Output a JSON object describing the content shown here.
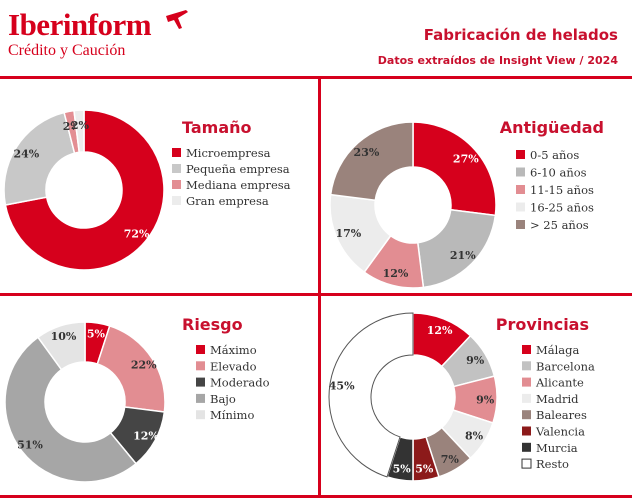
{
  "brand": {
    "name": "Iberinform",
    "tagline": "Crédito y Caución",
    "color": "#d6001c"
  },
  "report": {
    "title": "Fabricación de helados",
    "subtitle": "Datos extraídos de Insight View / 2024"
  },
  "chart_data": [
    {
      "type": "pie",
      "donut": true,
      "title": "Tamaño",
      "legend": "right",
      "series": [
        {
          "name": "Microempresa",
          "value": 72,
          "label": "72%",
          "color": "#d6001c"
        },
        {
          "name": "Pequeña empresa",
          "value": 24,
          "label": "24%",
          "color": "#c8c8c8"
        },
        {
          "name": "Mediana empresa",
          "value": 2,
          "label": "2%",
          "color": "#e38e93"
        },
        {
          "name": "Gran empresa",
          "value": 2,
          "label": "2%",
          "color": "#ececec"
        }
      ]
    },
    {
      "type": "pie",
      "donut": true,
      "title": "Antigüedad",
      "legend": "right",
      "series": [
        {
          "name": "0-5 años",
          "value": 27,
          "label": "27%",
          "color": "#d6001c"
        },
        {
          "name": "6-10 años",
          "value": 21,
          "label": "21%",
          "color": "#b9b9b9"
        },
        {
          "name": "11-15 años",
          "value": 12,
          "label": "12%",
          "color": "#e28d92"
        },
        {
          "name": "16-25 años",
          "value": 17,
          "label": "17%",
          "color": "#ececec"
        },
        {
          "name": "> 25 años",
          "value": 23,
          "label": "23%",
          "color": "#9a837c"
        }
      ]
    },
    {
      "type": "pie",
      "donut": true,
      "title": "Riesgo",
      "legend": "right",
      "series": [
        {
          "name": "Máximo",
          "value": 5,
          "label": "5%",
          "color": "#d6001c"
        },
        {
          "name": "Elevado",
          "value": 22,
          "label": "22%",
          "color": "#e28d92"
        },
        {
          "name": "Moderado",
          "value": 12,
          "label": "12%",
          "color": "#454545"
        },
        {
          "name": "Bajo",
          "value": 51,
          "label": "51%",
          "color": "#a6a6a6"
        },
        {
          "name": "Mínimo",
          "value": 10,
          "label": "10%",
          "color": "#e4e4e4"
        }
      ]
    },
    {
      "type": "pie",
      "donut": true,
      "title": "Provincias",
      "legend": "right",
      "series": [
        {
          "name": "Málaga",
          "value": 12,
          "label": "12%",
          "color": "#d6001c"
        },
        {
          "name": "Barcelona",
          "value": 9,
          "label": "9%",
          "color": "#c2c2c2"
        },
        {
          "name": "Alicante",
          "value": 9,
          "label": "9%",
          "color": "#e28d92"
        },
        {
          "name": "Madrid",
          "value": 8,
          "label": "8%",
          "color": "#ececec"
        },
        {
          "name": "Baleares",
          "value": 7,
          "label": "7%",
          "color": "#9a837c"
        },
        {
          "name": "Valencia",
          "value": 5,
          "label": "5%",
          "color": "#8c1a1a"
        },
        {
          "name": "Murcia",
          "value": 5,
          "label": "5%",
          "color": "#333333"
        },
        {
          "name": "Resto",
          "value": 45,
          "label": "45%",
          "color": "#ffffff"
        }
      ]
    }
  ]
}
